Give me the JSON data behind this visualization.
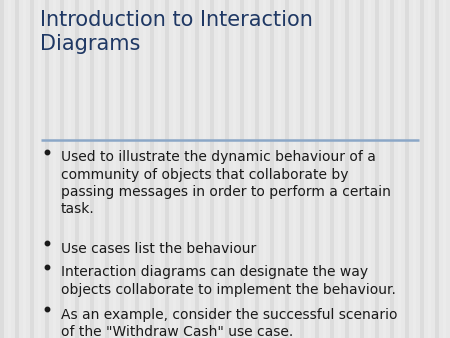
{
  "title_line1": "Introduction to Interaction",
  "title_line2": "Diagrams",
  "title_color": "#1F3864",
  "background_color": "#E8E8E8",
  "stripe_color_light": "#EBEBEB",
  "stripe_color_dark": "#DCDCDC",
  "separator_color": "#8BA7C7",
  "bullet_color": "#1a1a1a",
  "bullet_points": [
    "Used to illustrate the dynamic behaviour of a\ncommunity of objects that collaborate by\npassing messages in order to perform a certain\ntask.",
    "Use cases list the behaviour",
    "Interaction diagrams can designate the way\nobjects collaborate to implement the behaviour.",
    "As an example, consider the successful scenario\nof the \"Withdraw Cash\" use case."
  ],
  "title_fontsize": 15,
  "body_fontsize": 10,
  "font_family": "DejaVu Sans"
}
